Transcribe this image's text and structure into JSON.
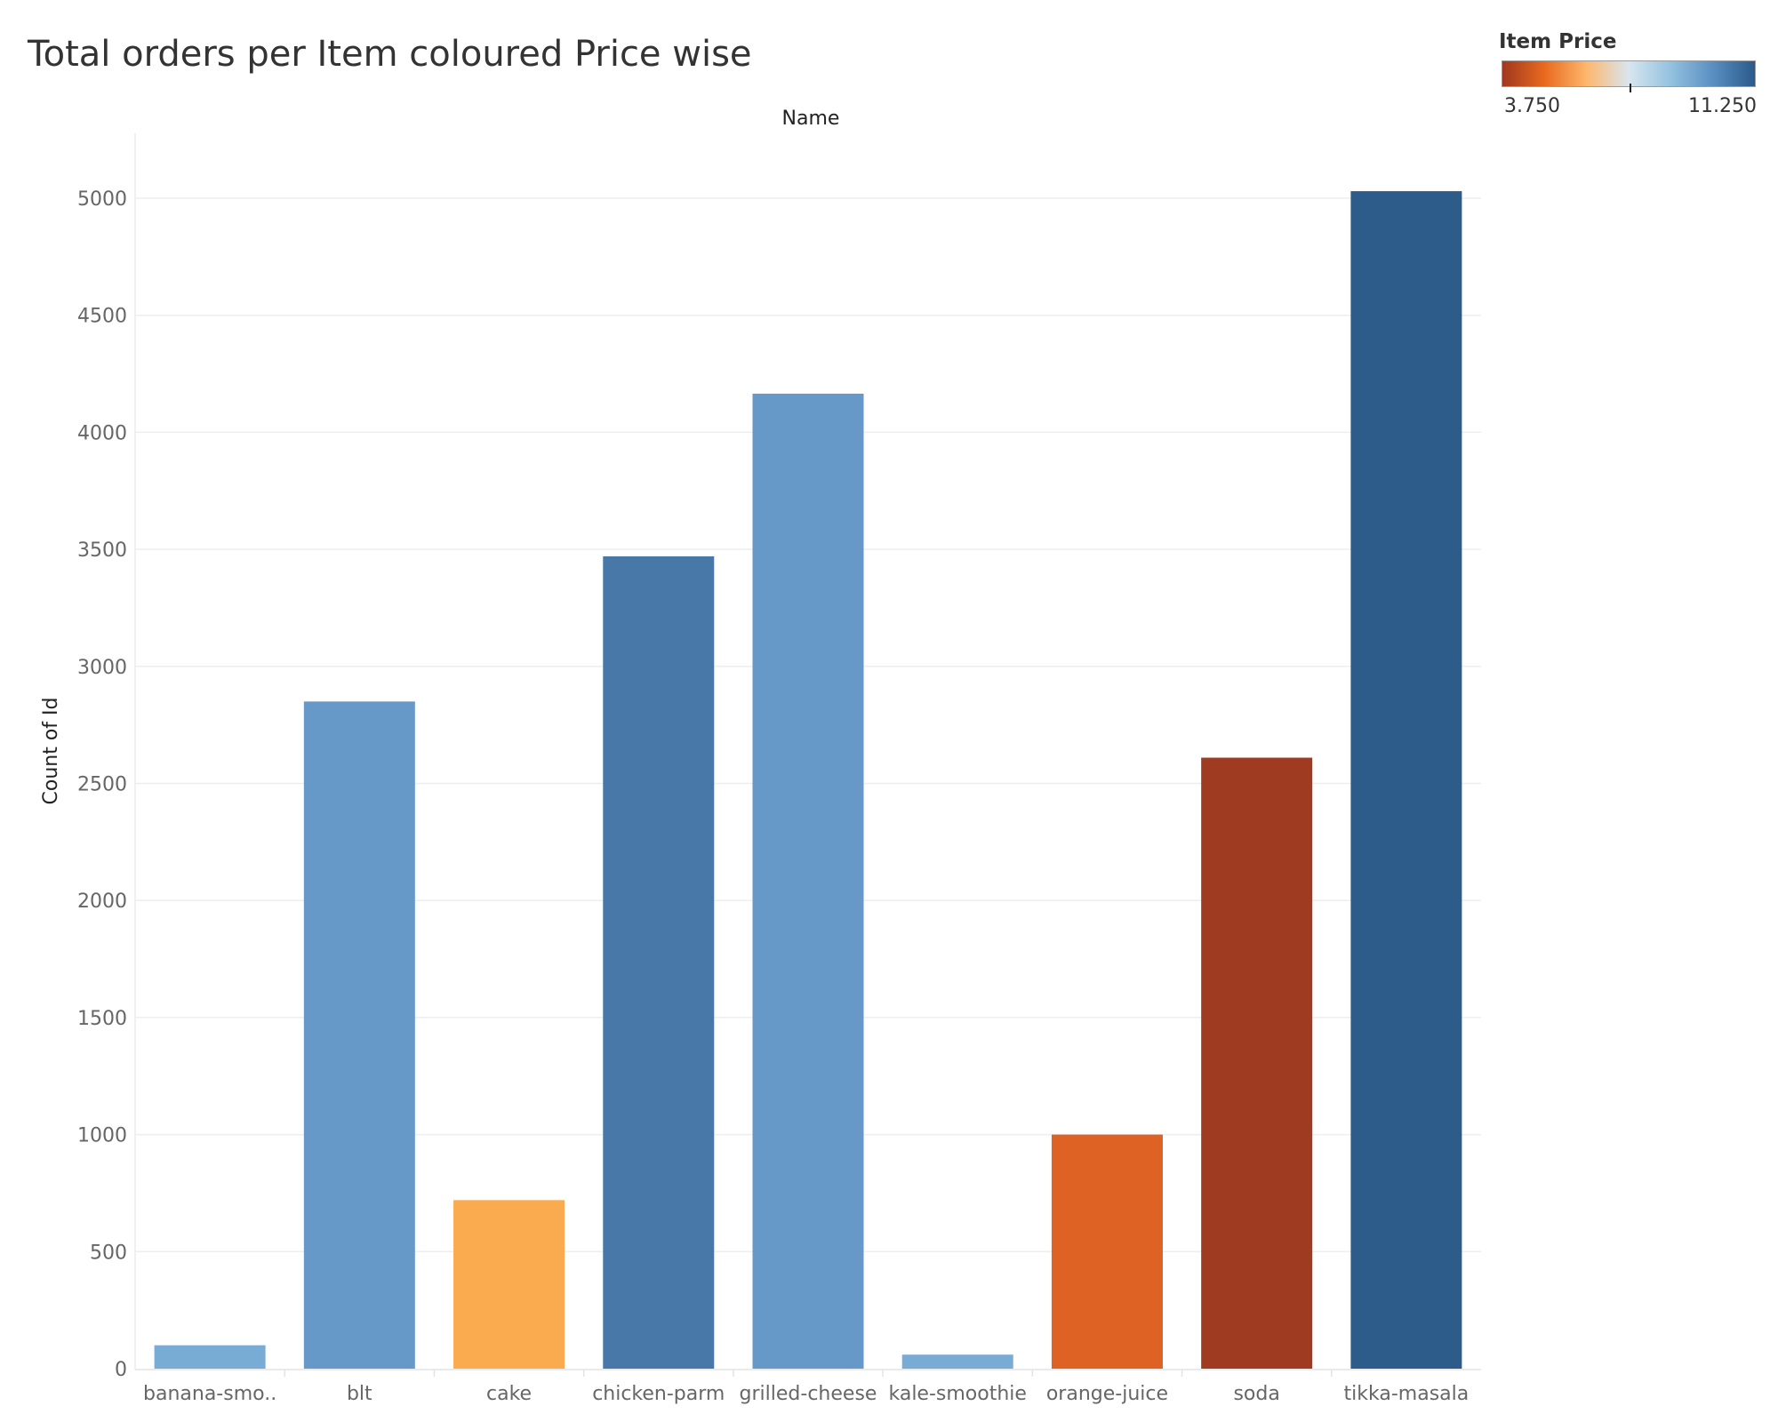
{
  "chart_data": {
    "type": "bar",
    "title": "Total orders per Item coloured Price wise",
    "xlabel": "Name",
    "ylabel": "Count of Id",
    "categories": [
      "banana-smo..",
      "blt",
      "cake",
      "chicken-parm",
      "grilled-cheese",
      "kale-smoothie",
      "orange-juice",
      "soda",
      "tikka-masala"
    ],
    "values": [
      100,
      2850,
      720,
      3470,
      4165,
      60,
      1000,
      2610,
      5030
    ],
    "bar_colors": [
      "#79acd5",
      "#6699c8",
      "#fbab4f",
      "#4878a8",
      "#6699c8",
      "#79acd5",
      "#de6223",
      "#9e3b21",
      "#2d5c8b"
    ],
    "ylim": [
      0,
      5250
    ],
    "yticks": [
      0,
      500,
      1000,
      1500,
      2000,
      2500,
      3000,
      3500,
      4000,
      4500,
      5000
    ],
    "grid": true,
    "legend": {
      "title": "Item Price",
      "min_label": "3.750",
      "max_label": "11.250",
      "placement": "top-right",
      "gradient": [
        "#a0371f",
        "#e86a1d",
        "#fdb76d",
        "#d8e6ef",
        "#94c1df",
        "#5a8fc2",
        "#2b5a8a"
      ]
    }
  }
}
